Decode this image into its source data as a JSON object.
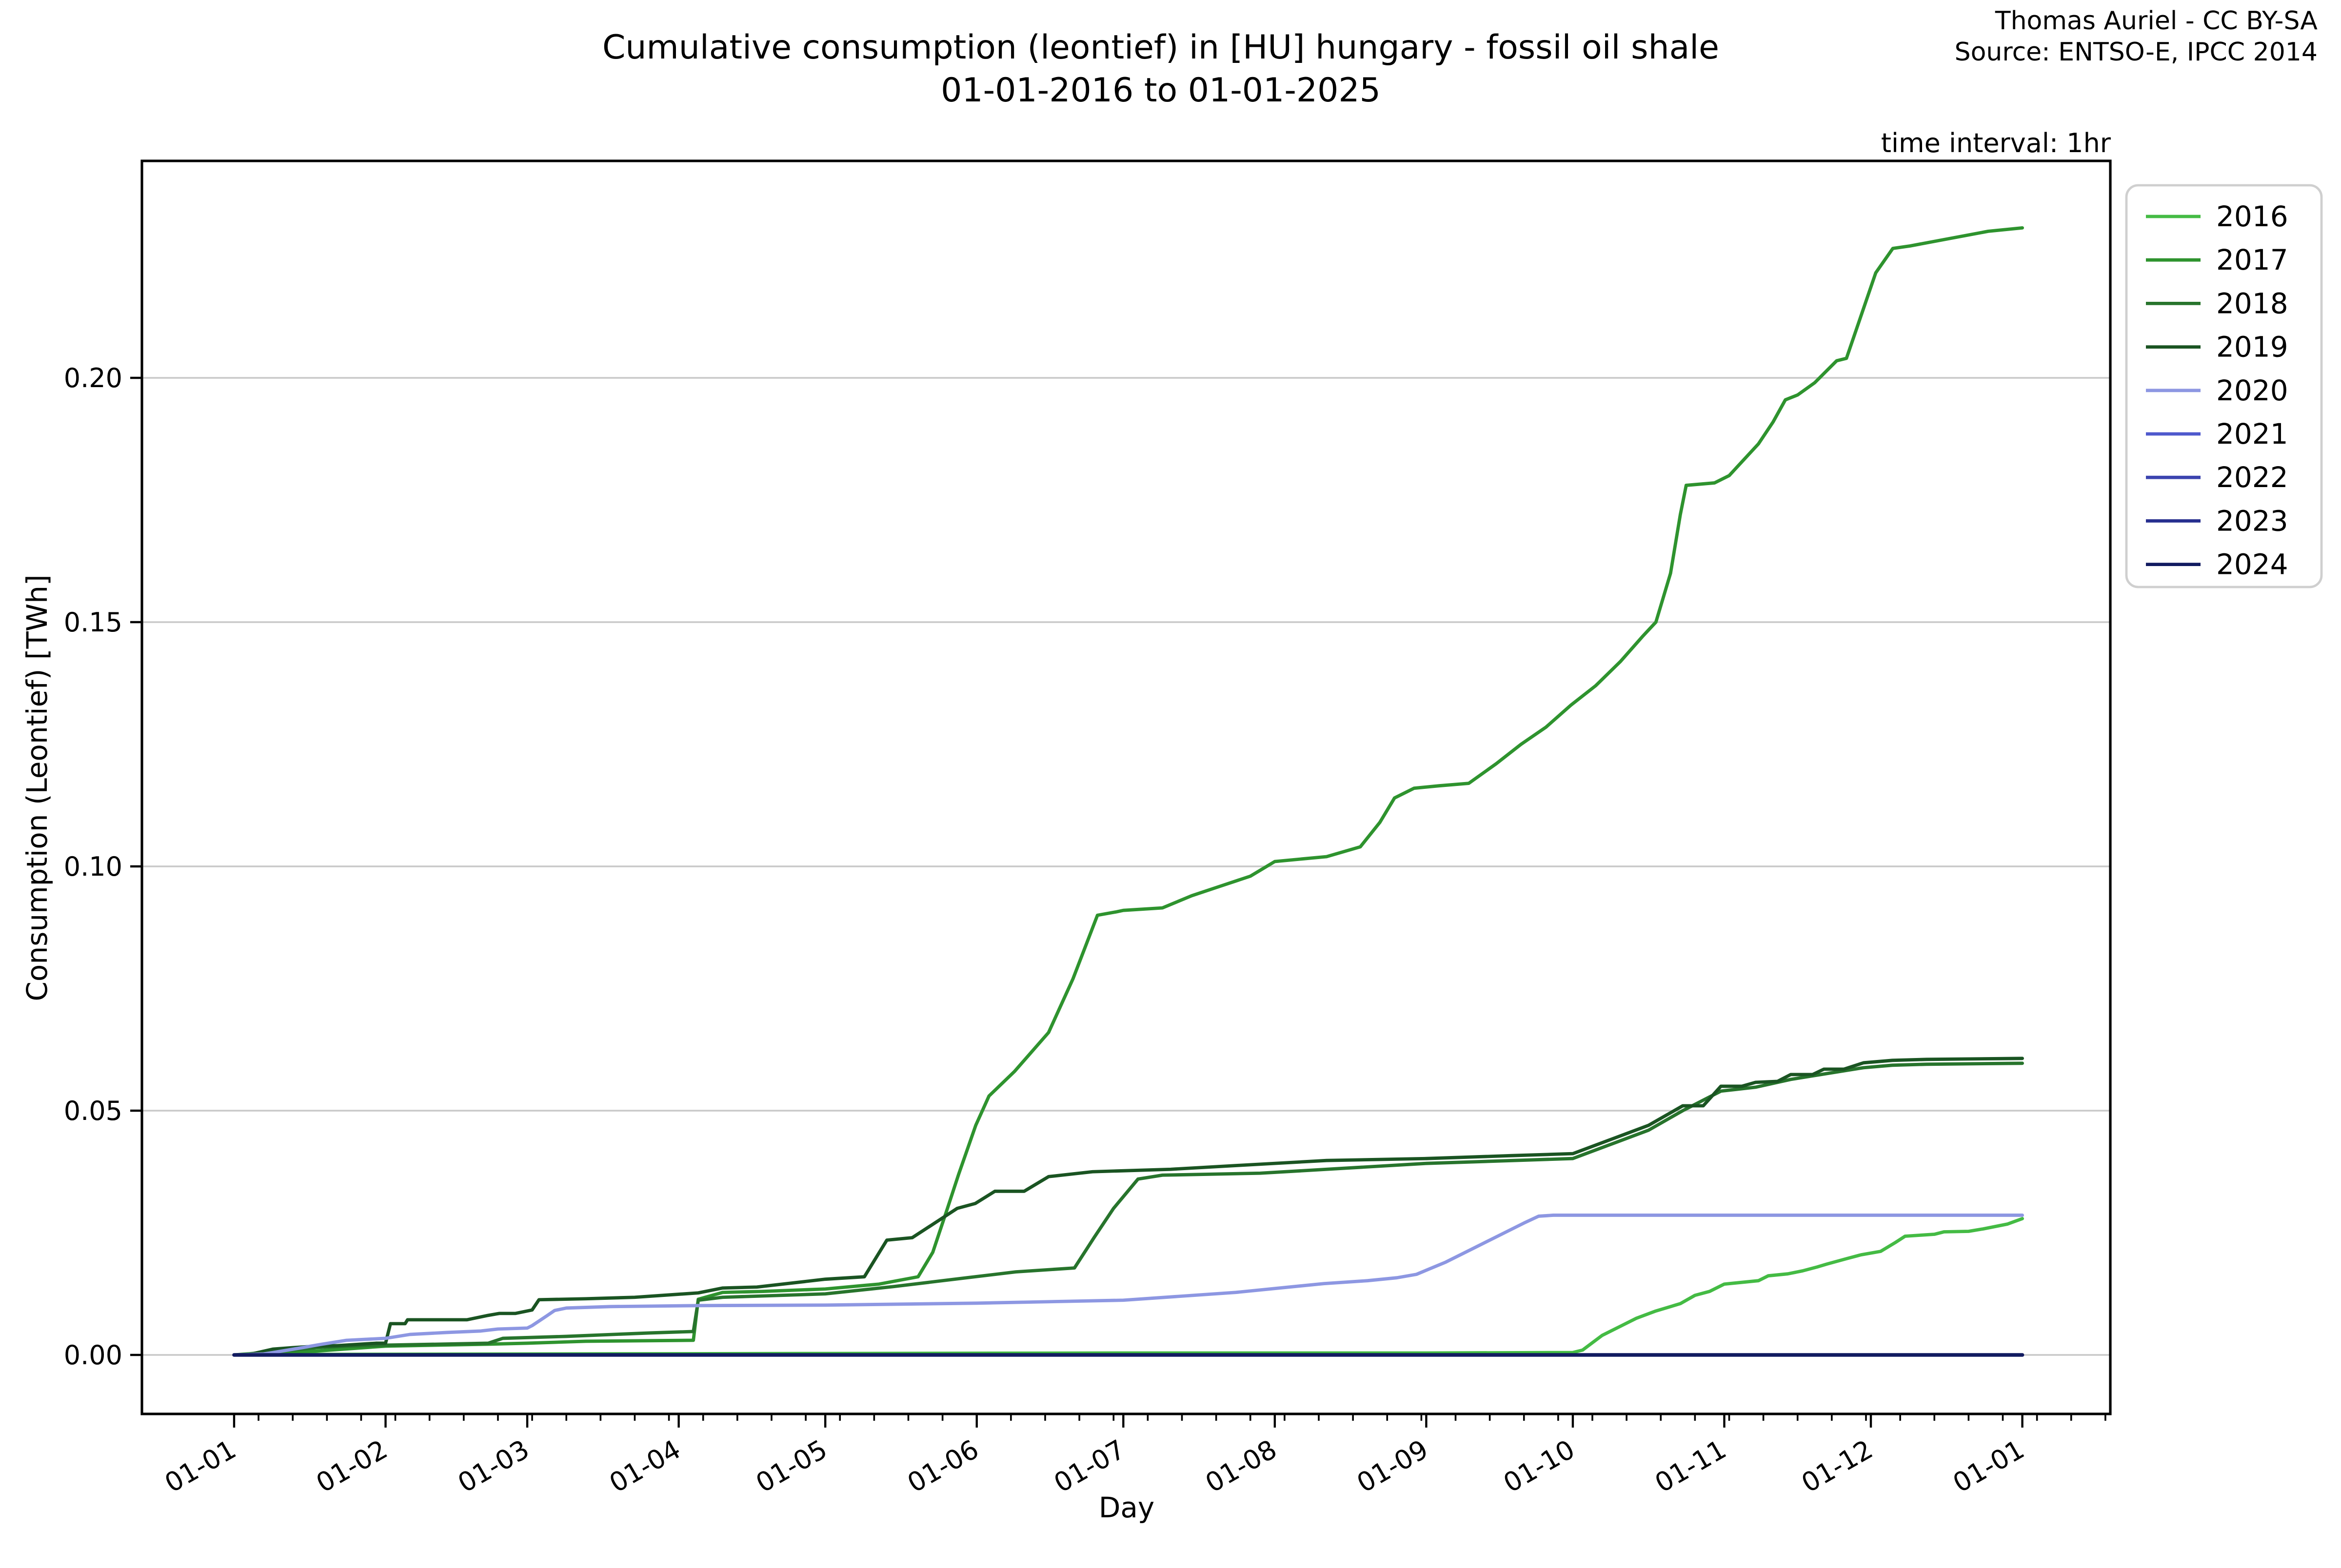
{
  "header": {
    "title_line1": "Cumulative consumption (leontief) in [HU] hungary - fossil oil shale",
    "title_line2": "01-01-2016 to 01-01-2025",
    "credit_line1": "Thomas Auriel - CC BY-SA",
    "credit_line2": "Source: ENTSO-E, IPCC 2014",
    "note": "time interval: 1hr"
  },
  "chart_data": {
    "type": "line",
    "title": "Cumulative consumption (leontief) in [HU] hungary - fossil oil shale 01-01-2016 to 01-01-2025",
    "xlabel": "Day",
    "ylabel": "Consumption (Leontief) [TWh]",
    "x_tick_labels": [
      "01-01",
      "01-02",
      "01-03",
      "01-04",
      "01-05",
      "01-06",
      "01-07",
      "01-08",
      "01-09",
      "01-10",
      "01-11",
      "01-12",
      "01-01"
    ],
    "x_tick_days": [
      0,
      31,
      60,
      91,
      121,
      152,
      182,
      213,
      244,
      274,
      305,
      335,
      366
    ],
    "y_ticks": [
      0.0,
      0.05,
      0.1,
      0.15,
      0.2
    ],
    "ylim": [
      -0.0121,
      0.2443
    ],
    "xlim_days": [
      -18.9,
      384
    ],
    "grid": "horizontal",
    "legend_position": "outside-right",
    "legend_title": "",
    "grid_color": "#c9c9c9",
    "spine_color": "#000000",
    "series": [
      {
        "name": "2016",
        "color": "#44bb44",
        "points": [
          [
            0,
            0
          ],
          [
            8,
            0.0001
          ],
          [
            60,
            0.0002
          ],
          [
            121,
            0.0003
          ],
          [
            182,
            0.0004
          ],
          [
            244,
            0.0004
          ],
          [
            274,
            0.0005
          ],
          [
            276,
            0.001
          ],
          [
            280,
            0.004
          ],
          [
            284,
            0.006
          ],
          [
            287,
            0.0075
          ],
          [
            291,
            0.009
          ],
          [
            296,
            0.0105
          ],
          [
            299,
            0.0122
          ],
          [
            302,
            0.013
          ],
          [
            305,
            0.0145
          ],
          [
            312,
            0.0152
          ],
          [
            314,
            0.0162
          ],
          [
            318,
            0.0166
          ],
          [
            321,
            0.0172
          ],
          [
            324,
            0.018
          ],
          [
            326,
            0.0186
          ],
          [
            330,
            0.0197
          ],
          [
            333,
            0.0205
          ],
          [
            337,
            0.0212
          ],
          [
            340,
            0.023
          ],
          [
            342,
            0.0243
          ],
          [
            348,
            0.0247
          ],
          [
            350,
            0.0252
          ],
          [
            355,
            0.0253
          ],
          [
            358,
            0.0258
          ],
          [
            361,
            0.0264
          ],
          [
            363,
            0.0268
          ],
          [
            366,
            0.0279
          ]
        ]
      },
      {
        "name": "2017",
        "color": "#2e932e",
        "points": [
          [
            0,
            0
          ],
          [
            5,
            0.0004
          ],
          [
            17,
            0.0008
          ],
          [
            31,
            0.0018
          ],
          [
            52,
            0.0022
          ],
          [
            60,
            0.0024
          ],
          [
            72,
            0.0028
          ],
          [
            94,
            0.003
          ],
          [
            95,
            0.0114
          ],
          [
            100,
            0.0128
          ],
          [
            108,
            0.013
          ],
          [
            121,
            0.0135
          ],
          [
            132,
            0.0145
          ],
          [
            140,
            0.016
          ],
          [
            143,
            0.021
          ],
          [
            146,
            0.03
          ],
          [
            148.3,
            0.037
          ],
          [
            151.8,
            0.047
          ],
          [
            154.5,
            0.053
          ],
          [
            159.7,
            0.058
          ],
          [
            166.7,
            0.066
          ],
          [
            171.7,
            0.077
          ],
          [
            176.7,
            0.09
          ],
          [
            180.6,
            0.0907
          ],
          [
            182,
            0.091
          ],
          [
            190,
            0.0915
          ],
          [
            196,
            0.094
          ],
          [
            202,
            0.096
          ],
          [
            208,
            0.098
          ],
          [
            213,
            0.101
          ],
          [
            223.6,
            0.102
          ],
          [
            230.5,
            0.104
          ],
          [
            234.5,
            0.109
          ],
          [
            237.5,
            0.114
          ],
          [
            241.5,
            0.116
          ],
          [
            246.6,
            0.1165
          ],
          [
            252.7,
            0.117
          ],
          [
            258.3,
            0.121
          ],
          [
            263.4,
            0.125
          ],
          [
            268.5,
            0.1285
          ],
          [
            273.6,
            0.133
          ],
          [
            278.7,
            0.137
          ],
          [
            283.8,
            0.142
          ],
          [
            288.2,
            0.147
          ],
          [
            291,
            0.15
          ],
          [
            294,
            0.16
          ],
          [
            296,
            0.172
          ],
          [
            297.2,
            0.178
          ],
          [
            303,
            0.1785
          ],
          [
            306,
            0.18
          ],
          [
            312,
            0.1865
          ],
          [
            315,
            0.191
          ],
          [
            317.5,
            0.1955
          ],
          [
            320,
            0.1965
          ],
          [
            323.5,
            0.199
          ],
          [
            328,
            0.2035
          ],
          [
            330,
            0.204
          ],
          [
            336,
            0.2215
          ],
          [
            339.5,
            0.2265
          ],
          [
            343,
            0.227
          ],
          [
            351,
            0.2285
          ],
          [
            359,
            0.23
          ],
          [
            366,
            0.2307
          ]
        ]
      },
      {
        "name": "2018",
        "color": "#27742c",
        "points": [
          [
            0,
            0
          ],
          [
            3,
            0
          ],
          [
            10,
            0.0008
          ],
          [
            17,
            0.0015
          ],
          [
            23,
            0.0018
          ],
          [
            31,
            0.002
          ],
          [
            52,
            0.0024
          ],
          [
            55,
            0.0034
          ],
          [
            68,
            0.0038
          ],
          [
            85,
            0.0045
          ],
          [
            94,
            0.0048
          ],
          [
            95,
            0.0112
          ],
          [
            100,
            0.0118
          ],
          [
            121,
            0.0125
          ],
          [
            135,
            0.014
          ],
          [
            150,
            0.0158
          ],
          [
            160,
            0.017
          ],
          [
            172,
            0.0178
          ],
          [
            176,
            0.024
          ],
          [
            180,
            0.03
          ],
          [
            185,
            0.036
          ],
          [
            190,
            0.0368
          ],
          [
            210,
            0.0372
          ],
          [
            244,
            0.0392
          ],
          [
            274,
            0.0402
          ],
          [
            281.5,
            0.043
          ],
          [
            289.5,
            0.046
          ],
          [
            296.5,
            0.05
          ],
          [
            304.3,
            0.054
          ],
          [
            311.4,
            0.0548
          ],
          [
            318.6,
            0.0564
          ],
          [
            325.4,
            0.0575
          ],
          [
            333.5,
            0.0588
          ],
          [
            339.4,
            0.0593
          ],
          [
            346.4,
            0.0595
          ],
          [
            366,
            0.0597
          ]
        ]
      },
      {
        "name": "2019",
        "color": "#1a5422",
        "points": [
          [
            0,
            0
          ],
          [
            2.7,
            0
          ],
          [
            8,
            0.0012
          ],
          [
            12,
            0.0015
          ],
          [
            16.7,
            0.0018
          ],
          [
            21,
            0.0019
          ],
          [
            29,
            0.0024
          ],
          [
            31,
            0.0024
          ],
          [
            32,
            0.0064
          ],
          [
            35,
            0.0064
          ],
          [
            35.5,
            0.0072
          ],
          [
            47.7,
            0.0072
          ],
          [
            52,
            0.0081
          ],
          [
            54.3,
            0.0085
          ],
          [
            57.6,
            0.0085
          ],
          [
            61,
            0.0092
          ],
          [
            62.4,
            0.0113
          ],
          [
            72,
            0.0115
          ],
          [
            82,
            0.0118
          ],
          [
            95,
            0.0127
          ],
          [
            100,
            0.0137
          ],
          [
            107,
            0.0139
          ],
          [
            121,
            0.0155
          ],
          [
            129,
            0.016
          ],
          [
            133.6,
            0.0235
          ],
          [
            138.8,
            0.024
          ],
          [
            148,
            0.03
          ],
          [
            151.7,
            0.031
          ],
          [
            155.7,
            0.0335
          ],
          [
            161.7,
            0.0335
          ],
          [
            166.7,
            0.0365
          ],
          [
            175.7,
            0.0375
          ],
          [
            191.7,
            0.038
          ],
          [
            205.6,
            0.0388
          ],
          [
            223.6,
            0.0398
          ],
          [
            244,
            0.0402
          ],
          [
            261.5,
            0.0408
          ],
          [
            274,
            0.0412
          ],
          [
            281.5,
            0.044
          ],
          [
            289.5,
            0.047
          ],
          [
            296.5,
            0.051
          ],
          [
            300.7,
            0.051
          ],
          [
            304.3,
            0.055
          ],
          [
            308.6,
            0.055
          ],
          [
            311.4,
            0.0558
          ],
          [
            315.9,
            0.056
          ],
          [
            318.6,
            0.0574
          ],
          [
            323.1,
            0.0574
          ],
          [
            325.4,
            0.0585
          ],
          [
            329.5,
            0.0585
          ],
          [
            333.5,
            0.0598
          ],
          [
            339.4,
            0.0603
          ],
          [
            346.4,
            0.0605
          ],
          [
            366,
            0.0607
          ]
        ]
      },
      {
        "name": "2020",
        "color": "#8d97e2",
        "points": [
          [
            0,
            0
          ],
          [
            6,
            0.0002
          ],
          [
            8,
            0.0005
          ],
          [
            14,
            0.0015
          ],
          [
            18,
            0.0022
          ],
          [
            23,
            0.003
          ],
          [
            31,
            0.0034
          ],
          [
            36,
            0.0042
          ],
          [
            43.5,
            0.0046
          ],
          [
            50.5,
            0.0049
          ],
          [
            54,
            0.0053
          ],
          [
            60,
            0.0055
          ],
          [
            61,
            0.006
          ],
          [
            64,
            0.008
          ],
          [
            65.6,
            0.0091
          ],
          [
            68,
            0.0096
          ],
          [
            77,
            0.0099
          ],
          [
            95,
            0.0101
          ],
          [
            121,
            0.0102
          ],
          [
            152,
            0.0106
          ],
          [
            182,
            0.0112
          ],
          [
            205,
            0.0128
          ],
          [
            223,
            0.0146
          ],
          [
            232,
            0.0152
          ],
          [
            238,
            0.0158
          ],
          [
            242,
            0.0165
          ],
          [
            248,
            0.019
          ],
          [
            254,
            0.022
          ],
          [
            260,
            0.025
          ],
          [
            264,
            0.027
          ],
          [
            267,
            0.0284
          ],
          [
            270,
            0.0286
          ],
          [
            366,
            0.0286
          ]
        ]
      },
      {
        "name": "2021",
        "color": "#4f59cd",
        "points": [
          [
            0,
            0
          ],
          [
            366,
            0
          ]
        ]
      },
      {
        "name": "2022",
        "color": "#3b43af",
        "points": [
          [
            0,
            0
          ],
          [
            366,
            0
          ]
        ]
      },
      {
        "name": "2023",
        "color": "#272f8f",
        "points": [
          [
            0,
            0
          ],
          [
            366,
            0
          ]
        ]
      },
      {
        "name": "2024",
        "color": "#121b60",
        "points": [
          [
            0,
            0
          ],
          [
            366,
            0
          ]
        ]
      }
    ]
  }
}
